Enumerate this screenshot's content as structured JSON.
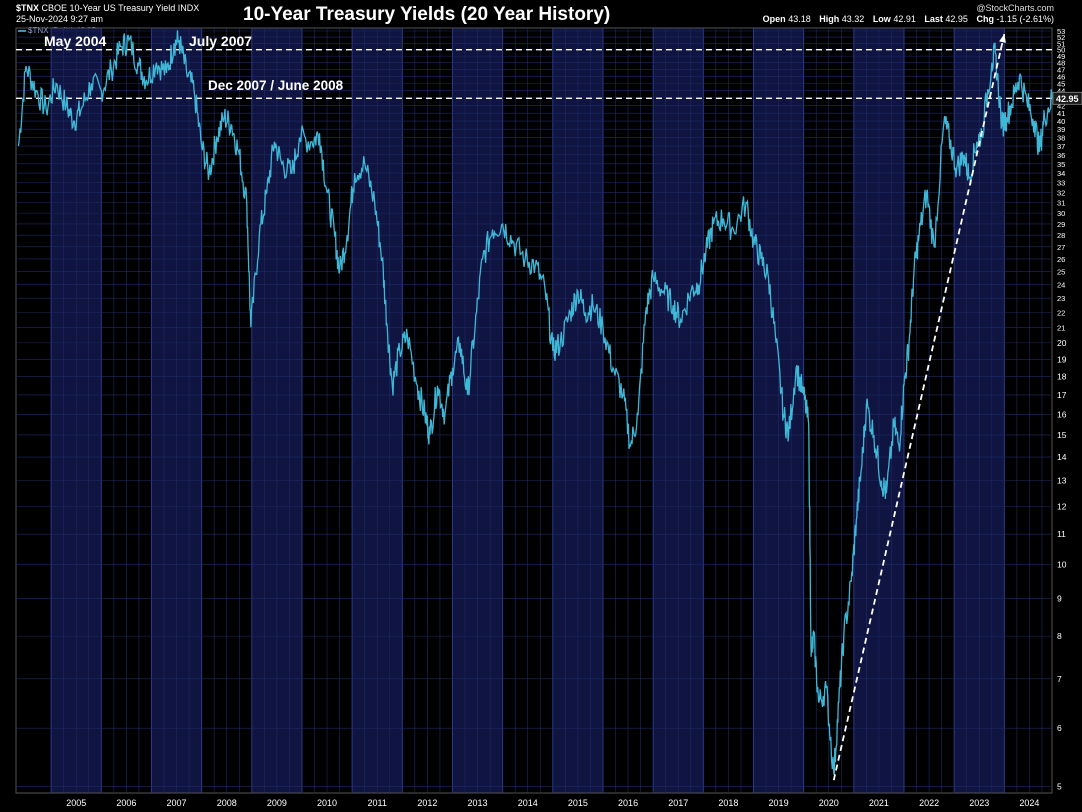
{
  "header": {
    "symbol": "$TNX",
    "description": "CBOE 10-Year US Treasury Yield INDX",
    "datetime": "25-Nov-2024 9:27 am",
    "watermark": "@StockCharts.com",
    "legend": "$TNX (Daily) 42.95",
    "stats": {
      "open_label": "Open",
      "open": "43.18",
      "high_label": "High",
      "high": "43.32",
      "low_label": "Low",
      "low": "42.91",
      "last_label": "Last",
      "last": "42.95",
      "chg_label": "Chg",
      "chg": "-1.15 (-2.61%)"
    }
  },
  "colors": {
    "background": "#000000",
    "line": "#3fb8d8",
    "grid": "#1f2a66",
    "band": "#0f1440",
    "annotation": "#ffffff"
  },
  "chart_data": {
    "type": "line",
    "title": "10-Year Treasury Yields (20 Year History)",
    "y_scale": "log",
    "ylim": [
      4.9,
      53.5
    ],
    "xlim": [
      2004.3,
      2024.95
    ],
    "x_tick_labels": [
      "2005",
      "2006",
      "2007",
      "2008",
      "2009",
      "2010",
      "2011",
      "2012",
      "2013",
      "2014",
      "2015",
      "2016",
      "2017",
      "2018",
      "2019",
      "2020",
      "2021",
      "2022",
      "2023",
      "2024"
    ],
    "y_tick_labels": [
      5,
      6,
      7,
      8,
      9,
      10,
      11,
      12,
      13,
      14,
      15,
      16,
      17,
      18,
      19,
      20,
      21,
      22,
      23,
      24,
      25,
      26,
      27,
      28,
      29,
      30,
      31,
      32,
      33,
      34,
      35,
      36,
      37,
      38,
      39,
      40,
      41,
      42,
      43,
      44,
      45,
      46,
      47,
      48,
      49,
      50,
      51,
      52,
      53
    ],
    "last_value_label": "42.95",
    "series": [
      {
        "points": [
          [
            2004.35,
            37.0
          ],
          [
            2004.5,
            47.5
          ],
          [
            2004.7,
            44.0
          ],
          [
            2004.9,
            41.5
          ],
          [
            2005.1,
            45.0
          ],
          [
            2005.3,
            42.0
          ],
          [
            2005.45,
            40.0
          ],
          [
            2005.6,
            41.5
          ],
          [
            2005.8,
            45.0
          ],
          [
            2006.0,
            44.0
          ],
          [
            2006.2,
            47.0
          ],
          [
            2006.4,
            50.5
          ],
          [
            2006.55,
            51.5
          ],
          [
            2006.75,
            47.5
          ],
          [
            2006.9,
            45.5
          ],
          [
            2007.1,
            48.0
          ],
          [
            2007.3,
            46.5
          ],
          [
            2007.45,
            51.0
          ],
          [
            2007.55,
            51.5
          ],
          [
            2007.7,
            46.5
          ],
          [
            2007.85,
            44.0
          ],
          [
            2008.0,
            37.0
          ],
          [
            2008.15,
            34.0
          ],
          [
            2008.3,
            38.0
          ],
          [
            2008.45,
            40.5
          ],
          [
            2008.6,
            39.5
          ],
          [
            2008.75,
            36.0
          ],
          [
            2008.9,
            31.0
          ],
          [
            2008.98,
            21.0
          ],
          [
            2009.15,
            28.0
          ],
          [
            2009.3,
            32.0
          ],
          [
            2009.45,
            37.5
          ],
          [
            2009.6,
            35.0
          ],
          [
            2009.8,
            34.0
          ],
          [
            2009.95,
            38.0
          ],
          [
            2010.2,
            37.5
          ],
          [
            2010.35,
            38.5
          ],
          [
            2010.5,
            32.0
          ],
          [
            2010.65,
            28.0
          ],
          [
            2010.75,
            25.0
          ],
          [
            2010.9,
            28.0
          ],
          [
            2011.05,
            34.0
          ],
          [
            2011.25,
            35.0
          ],
          [
            2011.45,
            31.0
          ],
          [
            2011.6,
            26.0
          ],
          [
            2011.7,
            21.0
          ],
          [
            2011.8,
            17.5
          ],
          [
            2011.95,
            19.5
          ],
          [
            2012.1,
            20.5
          ],
          [
            2012.3,
            17.5
          ],
          [
            2012.45,
            16.0
          ],
          [
            2012.55,
            15.0
          ],
          [
            2012.7,
            17.5
          ],
          [
            2012.85,
            16.0
          ],
          [
            2013.0,
            18.5
          ],
          [
            2013.15,
            20.0
          ],
          [
            2013.3,
            17.0
          ],
          [
            2013.45,
            21.0
          ],
          [
            2013.6,
            26.0
          ],
          [
            2013.8,
            28.5
          ],
          [
            2014.0,
            29.0
          ],
          [
            2014.2,
            27.5
          ],
          [
            2014.45,
            26.0
          ],
          [
            2014.65,
            25.5
          ],
          [
            2014.85,
            23.5
          ],
          [
            2015.0,
            19.5
          ],
          [
            2015.15,
            20.0
          ],
          [
            2015.35,
            22.0
          ],
          [
            2015.5,
            23.5
          ],
          [
            2015.65,
            22.0
          ],
          [
            2015.8,
            22.5
          ],
          [
            2016.0,
            21.0
          ],
          [
            2016.2,
            18.5
          ],
          [
            2016.4,
            17.0
          ],
          [
            2016.55,
            14.5
          ],
          [
            2016.7,
            16.0
          ],
          [
            2016.85,
            22.0
          ],
          [
            2017.0,
            24.5
          ],
          [
            2017.2,
            23.5
          ],
          [
            2017.4,
            22.5
          ],
          [
            2017.55,
            21.5
          ],
          [
            2017.75,
            23.5
          ],
          [
            2017.9,
            24.0
          ],
          [
            2018.05,
            26.5
          ],
          [
            2018.2,
            29.0
          ],
          [
            2018.4,
            29.5
          ],
          [
            2018.6,
            28.5
          ],
          [
            2018.85,
            31.0
          ],
          [
            2019.0,
            27.5
          ],
          [
            2019.15,
            26.0
          ],
          [
            2019.3,
            24.5
          ],
          [
            2019.45,
            20.0
          ],
          [
            2019.6,
            16.0
          ],
          [
            2019.7,
            15.0
          ],
          [
            2019.85,
            18.5
          ],
          [
            2020.0,
            17.0
          ],
          [
            2020.1,
            15.5
          ],
          [
            2020.15,
            7.5
          ],
          [
            2020.2,
            8.0
          ],
          [
            2020.3,
            6.5
          ],
          [
            2020.45,
            6.8
          ],
          [
            2020.6,
            5.2
          ],
          [
            2020.7,
            6.5
          ],
          [
            2020.8,
            8.0
          ],
          [
            2020.95,
            9.5
          ],
          [
            2021.05,
            11.5
          ],
          [
            2021.15,
            13.5
          ],
          [
            2021.25,
            16.5
          ],
          [
            2021.4,
            15.0
          ],
          [
            2021.55,
            13.0
          ],
          [
            2021.65,
            12.5
          ],
          [
            2021.8,
            15.5
          ],
          [
            2021.9,
            14.5
          ],
          [
            2022.0,
            17.5
          ],
          [
            2022.1,
            20.0
          ],
          [
            2022.2,
            25.0
          ],
          [
            2022.3,
            28.0
          ],
          [
            2022.45,
            32.0
          ],
          [
            2022.6,
            27.0
          ],
          [
            2022.8,
            40.0
          ],
          [
            2022.9,
            38.0
          ],
          [
            2023.05,
            34.5
          ],
          [
            2023.2,
            36.0
          ],
          [
            2023.3,
            33.5
          ],
          [
            2023.45,
            37.5
          ],
          [
            2023.55,
            38.5
          ],
          [
            2023.75,
            48.0
          ],
          [
            2023.82,
            49.5
          ],
          [
            2023.95,
            39.5
          ],
          [
            2024.05,
            40.5
          ],
          [
            2024.2,
            43.5
          ],
          [
            2024.3,
            46.0
          ],
          [
            2024.45,
            42.5
          ],
          [
            2024.6,
            40.0
          ],
          [
            2024.7,
            36.5
          ],
          [
            2024.8,
            40.5
          ],
          [
            2024.95,
            42.95
          ]
        ]
      }
    ],
    "annotations": [
      {
        "text": "May 2004"
      },
      {
        "text": "July 2007"
      },
      {
        "text": "Dec 2007 / June 2008"
      }
    ],
    "reference_lines": [
      {
        "y": 50.0,
        "style": "dashed"
      },
      {
        "y": 42.95,
        "style": "dashed"
      }
    ],
    "trend_line": {
      "from": [
        2020.6,
        5.1
      ],
      "to": [
        2024.0,
        52.5
      ],
      "style": "dashed"
    }
  }
}
